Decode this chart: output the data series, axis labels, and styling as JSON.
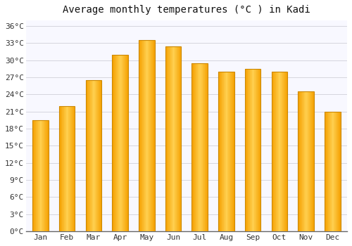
{
  "title": "Average monthly temperatures (°C ) in Kadi",
  "months": [
    "Jan",
    "Feb",
    "Mar",
    "Apr",
    "May",
    "Jun",
    "Jul",
    "Aug",
    "Sep",
    "Oct",
    "Nov",
    "Dec"
  ],
  "temperatures": [
    19.5,
    22.0,
    26.5,
    31.0,
    33.5,
    32.5,
    29.5,
    28.0,
    28.5,
    28.0,
    24.5,
    21.0
  ],
  "bar_color_left": "#F5A000",
  "bar_color_center": "#FFD050",
  "bar_color_right": "#F5A000",
  "bar_edge_color": "#CC8800",
  "background_color": "#FFFFFF",
  "plot_bg_color": "#F8F8FF",
  "grid_color": "#D0D0D8",
  "ylim": [
    0,
    37
  ],
  "yticks": [
    0,
    3,
    6,
    9,
    12,
    15,
    18,
    21,
    24,
    27,
    30,
    33,
    36
  ],
  "ytick_labels": [
    "0°C",
    "3°C",
    "6°C",
    "9°C",
    "12°C",
    "15°C",
    "18°C",
    "21°C",
    "24°C",
    "27°C",
    "30°C",
    "33°C",
    "36°C"
  ],
  "title_fontsize": 10,
  "tick_fontsize": 8,
  "bar_width": 0.6
}
